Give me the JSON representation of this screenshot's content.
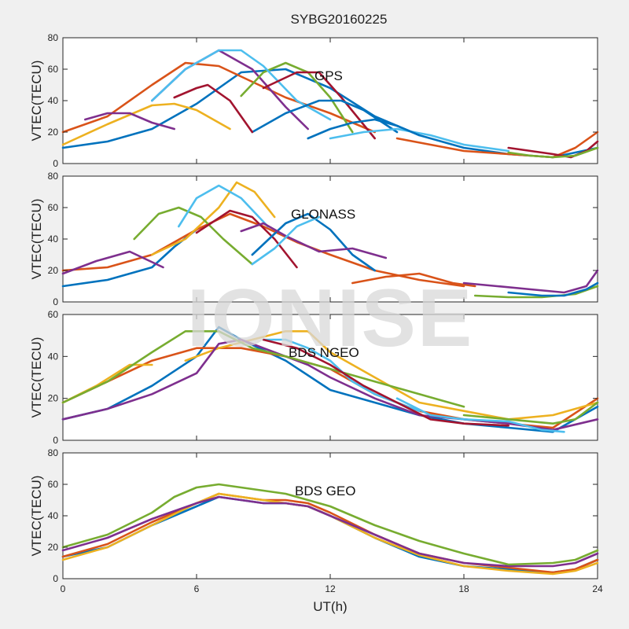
{
  "figure": {
    "title": "SYBG20160225",
    "xlabel": "UT(h)",
    "watermark": "IONISE"
  },
  "colors": {
    "blue": "#0072bd",
    "orange": "#d95319",
    "yellow": "#edb120",
    "purple": "#7e2f8e",
    "green": "#77ac30",
    "cyan": "#4dbeee",
    "red": "#a2142f"
  },
  "chart_data": [
    {
      "type": "line",
      "label": "GPS",
      "ylabel": "VTEC(TECU)",
      "xlim": [
        0,
        24
      ],
      "ylim": [
        0,
        80
      ],
      "xticks": [
        0,
        6,
        12,
        18,
        24
      ],
      "yticks": [
        0,
        20,
        40,
        60,
        80
      ],
      "series": [
        {
          "color": "blue",
          "x": [
            0,
            2,
            4,
            6,
            8,
            10,
            12,
            14,
            16,
            18,
            20,
            22,
            24
          ],
          "y": [
            10,
            14,
            22,
            38,
            58,
            60,
            48,
            30,
            18,
            10,
            6,
            4,
            10
          ]
        },
        {
          "color": "orange",
          "x": [
            0,
            2,
            4,
            5.5,
            7,
            8.5,
            10,
            12,
            14
          ],
          "y": [
            20,
            30,
            50,
            64,
            62,
            52,
            42,
            32,
            20
          ]
        },
        {
          "color": "yellow",
          "x": [
            0,
            2,
            4,
            5,
            6,
            7.5
          ],
          "y": [
            12,
            25,
            37,
            38,
            34,
            22
          ]
        },
        {
          "color": "purple",
          "x": [
            4,
            5.5,
            7,
            8.5,
            10,
            11
          ],
          "y": [
            40,
            60,
            72,
            60,
            36,
            22
          ]
        },
        {
          "color": "green",
          "x": [
            8,
            9,
            10,
            11,
            12,
            13
          ],
          "y": [
            43,
            58,
            64,
            58,
            42,
            20
          ]
        },
        {
          "color": "cyan",
          "x": [
            4,
            5.5,
            7,
            8,
            9,
            10.5,
            12
          ],
          "y": [
            40,
            60,
            72,
            72,
            62,
            40,
            28
          ]
        },
        {
          "color": "red",
          "x": [
            9,
            10.5,
            11.5,
            12.5,
            14
          ],
          "y": [
            48,
            58,
            58,
            42,
            16
          ]
        },
        {
          "color": "blue",
          "x": [
            8.5,
            10,
            11.5,
            12.5,
            13.5,
            15
          ],
          "y": [
            20,
            32,
            40,
            40,
            34,
            20
          ]
        },
        {
          "color": "cyan",
          "x": [
            12,
            13.5,
            15,
            16.5,
            18,
            20
          ],
          "y": [
            16,
            20,
            22,
            18,
            12,
            8
          ]
        },
        {
          "color": "orange",
          "x": [
            15,
            16.5,
            18,
            20,
            22,
            23,
            24
          ],
          "y": [
            16,
            12,
            8,
            6,
            4,
            10,
            20
          ]
        },
        {
          "color": "red",
          "x": [
            20,
            21,
            22,
            22.8,
            23.5,
            24
          ],
          "y": [
            10,
            8,
            6,
            4,
            8,
            14
          ]
        },
        {
          "color": "green",
          "x": [
            20,
            21,
            22,
            23,
            24
          ],
          "y": [
            7,
            5,
            4,
            5,
            10
          ]
        },
        {
          "color": "purple",
          "x": [
            1,
            2,
            3,
            4,
            5
          ],
          "y": [
            28,
            32,
            32,
            26,
            22
          ]
        },
        {
          "color": "red",
          "x": [
            5,
            6,
            6.5,
            7.5,
            8.5
          ],
          "y": [
            42,
            48,
            50,
            40,
            20
          ]
        },
        {
          "color": "blue",
          "x": [
            11,
            12,
            13,
            14,
            15,
            16
          ],
          "y": [
            16,
            22,
            26,
            28,
            24,
            18
          ]
        }
      ]
    },
    {
      "type": "line",
      "label": "GLONASS",
      "ylabel": "VTEC(TECU)",
      "xlim": [
        0,
        24
      ],
      "ylim": [
        0,
        80
      ],
      "xticks": [
        0,
        6,
        12,
        18,
        24
      ],
      "yticks": [
        0,
        20,
        40,
        60,
        80
      ],
      "series": [
        {
          "color": "blue",
          "x": [
            0,
            2,
            4,
            5,
            6
          ],
          "y": [
            10,
            14,
            22,
            35,
            46
          ]
        },
        {
          "color": "orange",
          "x": [
            0,
            2,
            4,
            6,
            7.5,
            9,
            10.5,
            12,
            14,
            16,
            18
          ],
          "y": [
            20,
            22,
            30,
            46,
            56,
            48,
            38,
            30,
            20,
            14,
            10
          ]
        },
        {
          "color": "yellow",
          "x": [
            4,
            5.5,
            7,
            7.8,
            8.6,
            9.5
          ],
          "y": [
            30,
            40,
            60,
            76,
            70,
            54
          ]
        },
        {
          "color": "purple",
          "x": [
            0,
            1.5,
            3,
            4.5
          ],
          "y": [
            18,
            26,
            32,
            22
          ]
        },
        {
          "color": "green",
          "x": [
            3.2,
            4.3,
            5.2,
            6.2,
            7.2,
            8.5
          ],
          "y": [
            40,
            56,
            60,
            54,
            40,
            24
          ]
        },
        {
          "color": "cyan",
          "x": [
            5.2,
            6,
            7,
            8,
            8.8,
            9.2
          ],
          "y": [
            48,
            66,
            74,
            66,
            54,
            48
          ]
        },
        {
          "color": "red",
          "x": [
            6,
            7.5,
            8.5,
            9.5,
            10.5
          ],
          "y": [
            44,
            58,
            54,
            40,
            22
          ]
        },
        {
          "color": "blue",
          "x": [
            8.5,
            10,
            11,
            12,
            13,
            14
          ],
          "y": [
            30,
            50,
            56,
            46,
            30,
            20
          ]
        },
        {
          "color": "purple",
          "x": [
            8,
            9,
            10,
            11.5,
            13,
            14.5
          ],
          "y": [
            45,
            50,
            42,
            32,
            34,
            28
          ]
        },
        {
          "color": "cyan",
          "x": [
            8.5,
            9.5,
            10.5,
            11.5
          ],
          "y": [
            24,
            34,
            48,
            54
          ]
        },
        {
          "color": "orange",
          "x": [
            13,
            14.5,
            16,
            17.5,
            18.5
          ],
          "y": [
            12,
            16,
            18,
            12,
            10
          ]
        },
        {
          "color": "purple",
          "x": [
            18,
            19.5,
            21,
            22.5,
            23.5,
            24
          ],
          "y": [
            12,
            10,
            8,
            6,
            10,
            20
          ]
        },
        {
          "color": "green",
          "x": [
            18.5,
            20,
            21.5,
            23,
            24
          ],
          "y": [
            4,
            3,
            3,
            5,
            10
          ]
        },
        {
          "color": "blue",
          "x": [
            20,
            21.5,
            22.5,
            23.5,
            24
          ],
          "y": [
            6,
            4,
            4,
            8,
            12
          ]
        }
      ]
    },
    {
      "type": "line",
      "label": "BDS NGEO",
      "ylabel": "VTEC(TECU)",
      "xlim": [
        0,
        24
      ],
      "ylim": [
        0,
        60
      ],
      "xticks": [
        0,
        6,
        12,
        18,
        24
      ],
      "yticks": [
        0,
        20,
        40,
        60
      ],
      "series": [
        {
          "color": "blue",
          "x": [
            0,
            2,
            4,
            6,
            7,
            8,
            10,
            12,
            14,
            16,
            18,
            20,
            22,
            24
          ],
          "y": [
            10,
            15,
            26,
            40,
            54,
            48,
            38,
            24,
            18,
            12,
            8,
            6,
            4,
            16
          ]
        },
        {
          "color": "orange",
          "x": [
            0,
            2,
            4,
            6,
            8,
            10,
            12,
            14,
            16,
            18,
            20,
            22,
            24
          ],
          "y": [
            18,
            28,
            38,
            44,
            44,
            40,
            34,
            22,
            14,
            10,
            8,
            6,
            20
          ]
        },
        {
          "color": "yellow",
          "x": [
            0,
            1.5,
            3,
            4
          ],
          "y": [
            18,
            26,
            36,
            36
          ]
        },
        {
          "color": "yellow",
          "x": [
            5.5,
            7,
            8.5,
            10,
            11,
            12,
            14,
            16,
            18,
            20,
            22,
            24
          ],
          "y": [
            38,
            44,
            48,
            52,
            52,
            42,
            30,
            18,
            14,
            10,
            12,
            18
          ]
        },
        {
          "color": "purple",
          "x": [
            0,
            2,
            4,
            6,
            7,
            8,
            9,
            10,
            11,
            12,
            14,
            16,
            18,
            20,
            22,
            24
          ],
          "y": [
            10,
            15,
            22,
            32,
            46,
            48,
            44,
            40,
            36,
            30,
            20,
            12,
            10,
            8,
            5,
            10
          ]
        },
        {
          "color": "green",
          "x": [
            0,
            2,
            4,
            5.5,
            7,
            8.5,
            10,
            12,
            14,
            16,
            18
          ],
          "y": [
            18,
            28,
            42,
            52,
            52,
            44,
            40,
            34,
            28,
            22,
            16
          ]
        },
        {
          "color": "green",
          "x": [
            18,
            20,
            22,
            23,
            24
          ],
          "y": [
            12,
            10,
            8,
            10,
            18
          ]
        },
        {
          "color": "cyan",
          "x": [
            9,
            10,
            11,
            12,
            13,
            14,
            15,
            16
          ],
          "y": [
            48,
            48,
            44,
            38,
            28,
            22,
            18,
            14
          ]
        },
        {
          "color": "cyan",
          "x": [
            15,
            16.5,
            18,
            20,
            21.5,
            22.5
          ],
          "y": [
            20,
            12,
            10,
            9,
            5,
            4
          ]
        },
        {
          "color": "red",
          "x": [
            9,
            10.5,
            12,
            13.5,
            15,
            16.5,
            18,
            20
          ],
          "y": [
            48,
            44,
            36,
            26,
            18,
            10,
            8,
            7
          ]
        }
      ]
    },
    {
      "type": "line",
      "label": "BDS GEO",
      "ylabel": "VTEC(TECU)",
      "xlabel": "UT(h)",
      "xlim": [
        0,
        24
      ],
      "ylim": [
        0,
        80
      ],
      "xticks": [
        0,
        6,
        12,
        18,
        24
      ],
      "yticks": [
        0,
        20,
        40,
        60,
        80
      ],
      "series": [
        {
          "color": "blue",
          "x": [
            0,
            2,
            4,
            6,
            7,
            8,
            9,
            10,
            11,
            12,
            14,
            16,
            18,
            20,
            22,
            23,
            24
          ],
          "y": [
            14,
            20,
            34,
            46,
            52,
            50,
            48,
            48,
            46,
            40,
            26,
            14,
            8,
            6,
            4,
            6,
            12
          ]
        },
        {
          "color": "orange",
          "x": [
            0,
            2,
            4,
            6,
            7,
            8,
            9,
            10,
            11,
            12,
            14,
            16,
            18,
            20,
            22,
            23,
            24
          ],
          "y": [
            14,
            22,
            36,
            48,
            54,
            52,
            50,
            50,
            48,
            42,
            28,
            16,
            10,
            7,
            4,
            6,
            12
          ]
        },
        {
          "color": "yellow",
          "x": [
            0,
            2,
            4,
            6,
            7,
            8,
            9,
            10,
            11,
            12,
            14,
            16,
            18,
            20,
            22,
            23,
            24
          ],
          "y": [
            12,
            20,
            34,
            48,
            54,
            52,
            50,
            48,
            46,
            40,
            26,
            15,
            8,
            5,
            3,
            5,
            10
          ]
        },
        {
          "color": "purple",
          "x": [
            0,
            2,
            4,
            6,
            7,
            8,
            9,
            10,
            11,
            12,
            14,
            16,
            18,
            20,
            22,
            23,
            24
          ],
          "y": [
            18,
            26,
            38,
            48,
            52,
            50,
            48,
            48,
            46,
            40,
            28,
            16,
            10,
            8,
            8,
            10,
            16
          ]
        },
        {
          "color": "green",
          "x": [
            0,
            2,
            4,
            5,
            6,
            7,
            8,
            9,
            10,
            11,
            12,
            14,
            16,
            18,
            20,
            22,
            23,
            24
          ],
          "y": [
            20,
            28,
            42,
            52,
            58,
            60,
            58,
            56,
            54,
            50,
            46,
            34,
            24,
            16,
            9,
            10,
            12,
            18
          ]
        }
      ]
    }
  ]
}
